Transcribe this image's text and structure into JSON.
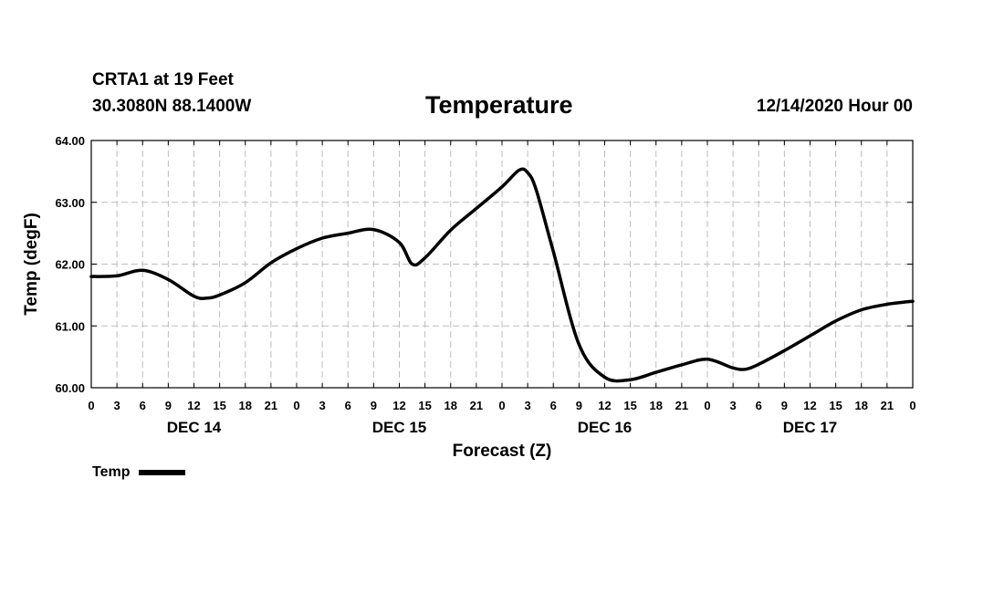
{
  "header": {
    "station": "CRTA1 at 19 Feet",
    "coords": "30.3080N 88.1400W",
    "title": "Temperature",
    "run_time": "12/14/2020 Hour 00"
  },
  "legend": {
    "label": "Temp",
    "color": "#000000"
  },
  "chart_data": {
    "type": "line",
    "title": "Temperature",
    "xlabel": "Forecast (Z)",
    "ylabel": "Temp (degF)",
    "xlim": [
      0,
      96
    ],
    "ylim": [
      60,
      64
    ],
    "grid": true,
    "y_ticks": [
      "60.00",
      "61.00",
      "62.00",
      "63.00",
      "64.00"
    ],
    "x_ticks": [
      "0",
      "3",
      "6",
      "9",
      "12",
      "15",
      "18",
      "21",
      "0",
      "3",
      "6",
      "9",
      "12",
      "15",
      "18",
      "21",
      "0",
      "3",
      "6",
      "9",
      "12",
      "15",
      "18",
      "21",
      "0",
      "3",
      "6",
      "9",
      "12",
      "15",
      "18",
      "21",
      "0"
    ],
    "day_labels": [
      {
        "label": "DEC 14",
        "hour": 12
      },
      {
        "label": "DEC 15",
        "hour": 36
      },
      {
        "label": "DEC 16",
        "hour": 60
      },
      {
        "label": "DEC 17",
        "hour": 84
      }
    ],
    "series": [
      {
        "name": "Temp",
        "color": "#000000",
        "x": [
          0,
          3,
          6,
          9,
          12,
          13.5,
          15,
          18,
          21,
          24,
          27,
          30,
          33,
          36,
          37.5,
          39,
          42,
          45,
          48,
          50,
          51,
          52,
          54,
          57,
          60,
          63,
          66,
          69,
          72,
          75,
          76.5,
          78,
          81,
          84,
          87,
          90,
          93,
          96
        ],
        "values": [
          61.8,
          61.81,
          61.9,
          61.75,
          61.48,
          61.45,
          61.5,
          61.7,
          62.02,
          62.25,
          62.42,
          62.5,
          62.56,
          62.35,
          62.0,
          62.1,
          62.55,
          62.9,
          63.25,
          63.52,
          63.48,
          63.2,
          62.2,
          60.7,
          60.17,
          60.13,
          60.25,
          60.37,
          60.46,
          60.32,
          60.3,
          60.38,
          60.6,
          60.84,
          61.08,
          61.26,
          61.35,
          61.4
        ]
      }
    ]
  }
}
